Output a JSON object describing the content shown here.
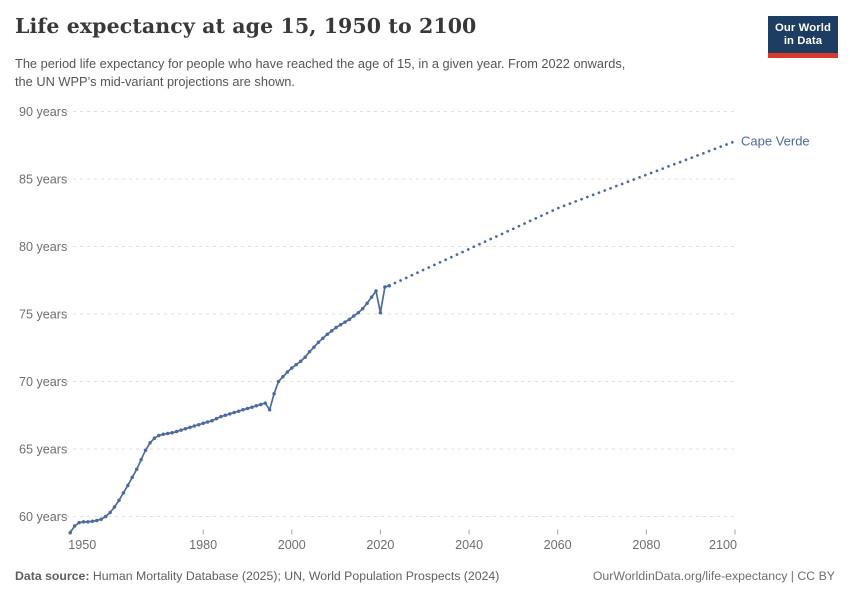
{
  "header": {
    "title": "Life expectancy at age 15, 1950 to 2100",
    "subtitle_lines": [
      "The period life expectancy for people who have reached the age of 15, in a given year. From 2022 onwards,",
      "the UN WPP’s mid-variant projections are shown."
    ],
    "logo_line1": "Our World",
    "logo_line2": "in Data",
    "logo_bg": "#1d3d63",
    "logo_bar": "#d93a2b"
  },
  "footer": {
    "source_label": "Data source:",
    "source_text": " Human Mortality Database (2025); UN, World Population Prospects (2024)",
    "right_text": "OurWorldinData.org/life-expectancy | CC BY"
  },
  "chart_data": {
    "type": "line",
    "title": "Life expectancy at age 15, 1950 to 2100",
    "xlabel": "",
    "ylabel": "",
    "xlim": [
      1950,
      2100
    ],
    "ylim": [
      58.5,
      90
    ],
    "grid": "horizontal-dashed",
    "legend_position": "end-of-line-label",
    "line_color": "#4c6a9e",
    "projection_start": 2022,
    "x_ticks": [
      1950,
      1980,
      2000,
      2020,
      2040,
      2060,
      2080,
      2100
    ],
    "x_tick_labels": [
      "1950",
      "1980",
      "2000",
      "2020",
      "2040",
      "2060",
      "2080",
      "2100"
    ],
    "y_ticks": [
      60,
      65,
      70,
      75,
      80,
      85,
      90
    ],
    "y_tick_labels": [
      "60 years",
      "65 years",
      "70 years",
      "75 years",
      "80 years",
      "85 years",
      "90 years"
    ],
    "series": [
      {
        "name": "Cape Verde",
        "points": [
          [
            1950,
            58.8
          ],
          [
            1951,
            59.3
          ],
          [
            1952,
            59.55
          ],
          [
            1953,
            59.6
          ],
          [
            1954,
            59.6
          ],
          [
            1955,
            59.65
          ],
          [
            1956,
            59.7
          ],
          [
            1957,
            59.8
          ],
          [
            1958,
            60.0
          ],
          [
            1959,
            60.3
          ],
          [
            1960,
            60.7
          ],
          [
            1961,
            61.2
          ],
          [
            1962,
            61.75
          ],
          [
            1963,
            62.3
          ],
          [
            1964,
            62.9
          ],
          [
            1965,
            63.5
          ],
          [
            1966,
            64.2
          ],
          [
            1967,
            64.9
          ],
          [
            1968,
            65.45
          ],
          [
            1969,
            65.8
          ],
          [
            1970,
            66.0
          ],
          [
            1971,
            66.1
          ],
          [
            1972,
            66.15
          ],
          [
            1973,
            66.2
          ],
          [
            1974,
            66.3
          ],
          [
            1975,
            66.4
          ],
          [
            1976,
            66.5
          ],
          [
            1977,
            66.6
          ],
          [
            1978,
            66.7
          ],
          [
            1979,
            66.8
          ],
          [
            1980,
            66.9
          ],
          [
            1981,
            67.0
          ],
          [
            1982,
            67.1
          ],
          [
            1983,
            67.25
          ],
          [
            1984,
            67.4
          ],
          [
            1985,
            67.5
          ],
          [
            1986,
            67.6
          ],
          [
            1987,
            67.7
          ],
          [
            1988,
            67.8
          ],
          [
            1989,
            67.9
          ],
          [
            1990,
            68.0
          ],
          [
            1991,
            68.1
          ],
          [
            1992,
            68.2
          ],
          [
            1993,
            68.3
          ],
          [
            1994,
            68.4
          ],
          [
            1995,
            67.9
          ],
          [
            1996,
            69.1
          ],
          [
            1997,
            70.0
          ],
          [
            1998,
            70.35
          ],
          [
            1999,
            70.7
          ],
          [
            2000,
            71.0
          ],
          [
            2001,
            71.25
          ],
          [
            2002,
            71.5
          ],
          [
            2003,
            71.8
          ],
          [
            2004,
            72.2
          ],
          [
            2005,
            72.55
          ],
          [
            2006,
            72.9
          ],
          [
            2007,
            73.2
          ],
          [
            2008,
            73.5
          ],
          [
            2009,
            73.75
          ],
          [
            2010,
            74.0
          ],
          [
            2011,
            74.2
          ],
          [
            2012,
            74.4
          ],
          [
            2013,
            74.6
          ],
          [
            2014,
            74.85
          ],
          [
            2015,
            75.1
          ],
          [
            2016,
            75.4
          ],
          [
            2017,
            75.8
          ],
          [
            2018,
            76.25
          ],
          [
            2019,
            76.7
          ],
          [
            2020,
            75.1
          ],
          [
            2021,
            77.0
          ],
          [
            2022,
            77.1
          ],
          [
            2023,
            77.25
          ],
          [
            2024,
            77.4
          ],
          [
            2025,
            77.55
          ],
          [
            2026,
            77.7
          ],
          [
            2027,
            77.86
          ],
          [
            2028,
            78.01
          ],
          [
            2029,
            78.16
          ],
          [
            2030,
            78.31
          ],
          [
            2031,
            78.46
          ],
          [
            2032,
            78.61
          ],
          [
            2033,
            78.76
          ],
          [
            2034,
            78.91
          ],
          [
            2035,
            79.06
          ],
          [
            2036,
            79.21
          ],
          [
            2037,
            79.36
          ],
          [
            2038,
            79.51
          ],
          [
            2039,
            79.66
          ],
          [
            2040,
            79.81
          ],
          [
            2041,
            79.97
          ],
          [
            2042,
            80.12
          ],
          [
            2043,
            80.27
          ],
          [
            2044,
            80.42
          ],
          [
            2045,
            80.57
          ],
          [
            2046,
            80.72
          ],
          [
            2047,
            80.87
          ],
          [
            2048,
            81.02
          ],
          [
            2049,
            81.17
          ],
          [
            2050,
            81.32
          ],
          [
            2051,
            81.47
          ],
          [
            2052,
            81.62
          ],
          [
            2053,
            81.77
          ],
          [
            2054,
            81.93
          ],
          [
            2055,
            82.08
          ],
          [
            2056,
            82.23
          ],
          [
            2057,
            82.38
          ],
          [
            2058,
            82.53
          ],
          [
            2059,
            82.68
          ],
          [
            2060,
            82.83
          ],
          [
            2061,
            82.96
          ],
          [
            2062,
            83.08
          ],
          [
            2063,
            83.21
          ],
          [
            2064,
            83.33
          ],
          [
            2065,
            83.45
          ],
          [
            2066,
            83.58
          ],
          [
            2067,
            83.7
          ],
          [
            2068,
            83.83
          ],
          [
            2069,
            83.95
          ],
          [
            2070,
            84.07
          ],
          [
            2071,
            84.2
          ],
          [
            2072,
            84.32
          ],
          [
            2073,
            84.45
          ],
          [
            2074,
            84.57
          ],
          [
            2075,
            84.69
          ],
          [
            2076,
            84.82
          ],
          [
            2077,
            84.94
          ],
          [
            2078,
            85.07
          ],
          [
            2079,
            85.19
          ],
          [
            2080,
            85.31
          ],
          [
            2081,
            85.44
          ],
          [
            2082,
            85.56
          ],
          [
            2083,
            85.68
          ],
          [
            2084,
            85.81
          ],
          [
            2085,
            85.93
          ],
          [
            2086,
            86.06
          ],
          [
            2087,
            86.18
          ],
          [
            2088,
            86.3
          ],
          [
            2089,
            86.43
          ],
          [
            2090,
            86.55
          ],
          [
            2091,
            86.68
          ],
          [
            2092,
            86.8
          ],
          [
            2093,
            86.92
          ],
          [
            2094,
            87.05
          ],
          [
            2095,
            87.17
          ],
          [
            2096,
            87.3
          ],
          [
            2097,
            87.42
          ],
          [
            2098,
            87.54
          ],
          [
            2099,
            87.67
          ],
          [
            2100,
            87.8
          ]
        ]
      }
    ]
  }
}
